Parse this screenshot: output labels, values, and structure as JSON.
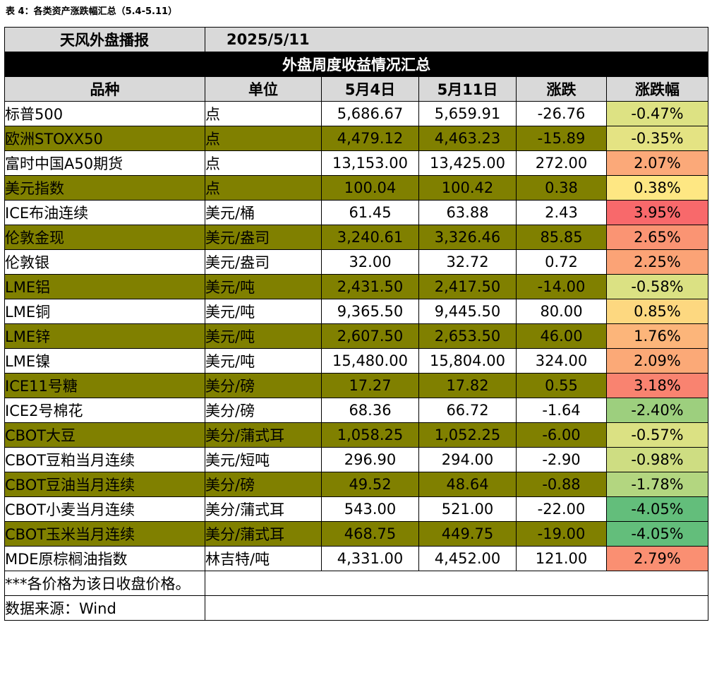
{
  "caption": "表 4：各类资产涨跌幅汇总（5.4-5.11）",
  "header": {
    "brand": "天风外盘播报",
    "date": "2025/5/11",
    "title": "外盘周度收益情况汇总"
  },
  "columns": [
    "品种",
    "单位",
    "5月4日",
    "5月11日",
    "涨跌",
    "涨跌幅"
  ],
  "rows": [
    {
      "name": "标普500",
      "unit": "点",
      "v1": "5,686.67",
      "v2": "5,659.91",
      "chg": "-26.76",
      "pct": "-0.47%",
      "color": "#dde283",
      "olive": false
    },
    {
      "name": "欧洲STOXX50",
      "unit": "点",
      "v1": "4,479.12",
      "v2": "4,463.23",
      "chg": "-15.89",
      "pct": "-0.35%",
      "color": "#e4e383",
      "olive": true
    },
    {
      "name": "富时中国A50期货",
      "unit": "点",
      "v1": "13,153.00",
      "v2": "13,425.00",
      "chg": "272.00",
      "pct": "2.07%",
      "color": "#fba979",
      "olive": false
    },
    {
      "name": "美元指数",
      "unit": "点",
      "v1": "100.04",
      "v2": "100.42",
      "chg": "0.38",
      "pct": "0.38%",
      "color": "#fee783",
      "olive": true
    },
    {
      "name": "ICE布油连续",
      "unit": "美元/桶",
      "v1": "61.45",
      "v2": "63.88",
      "chg": "2.43",
      "pct": "3.95%",
      "color": "#f8696b",
      "olive": false
    },
    {
      "name": "伦敦金现",
      "unit": "美元/盎司",
      "v1": "3,240.61",
      "v2": "3,326.46",
      "chg": "85.85",
      "pct": "2.65%",
      "color": "#fa9473",
      "olive": true
    },
    {
      "name": "伦敦银",
      "unit": "美元/盎司",
      "v1": "32.00",
      "v2": "32.72",
      "chg": "0.72",
      "pct": "2.25%",
      "color": "#fba376",
      "olive": false
    },
    {
      "name": "LME铝",
      "unit": "美元/吨",
      "v1": "2,431.50",
      "v2": "2,417.50",
      "chg": "-14.00",
      "pct": "-0.58%",
      "color": "#dbe183",
      "olive": true
    },
    {
      "name": "LME铜",
      "unit": "美元/吨",
      "v1": "9,365.50",
      "v2": "9,445.50",
      "chg": "80.00",
      "pct": "0.85%",
      "color": "#fdd880",
      "olive": false
    },
    {
      "name": "LME锌",
      "unit": "美元/吨",
      "v1": "2,607.50",
      "v2": "2,653.50",
      "chg": "46.00",
      "pct": "1.76%",
      "color": "#fcb57a",
      "olive": true
    },
    {
      "name": "LME镍",
      "unit": "美元/吨",
      "v1": "15,480.00",
      "v2": "15,804.00",
      "chg": "324.00",
      "pct": "2.09%",
      "color": "#fba977",
      "olive": false
    },
    {
      "name": "ICE11号糖",
      "unit": "美分/磅",
      "v1": "17.27",
      "v2": "17.82",
      "chg": "0.55",
      "pct": "3.18%",
      "color": "#f98370",
      "olive": true
    },
    {
      "name": "ICE2号棉花",
      "unit": "美分/磅",
      "v1": "68.36",
      "v2": "66.72",
      "chg": "-1.64",
      "pct": "-2.40%",
      "color": "#9dcf7e",
      "olive": false
    },
    {
      "name": "CBOT大豆",
      "unit": "美分/蒲式耳",
      "v1": "1,058.25",
      "v2": "1,052.25",
      "chg": "-6.00",
      "pct": "-0.57%",
      "color": "#dbe183",
      "olive": true
    },
    {
      "name": "CBOT豆粕当月连续",
      "unit": "美元/短吨",
      "v1": "296.90",
      "v2": "294.00",
      "chg": "-2.90",
      "pct": "-0.98%",
      "color": "#cedd82",
      "olive": false
    },
    {
      "name": "CBOT豆油当月连续",
      "unit": "美分/磅",
      "v1": "49.52",
      "v2": "48.64",
      "chg": "-0.88",
      "pct": "-1.78%",
      "color": "#b3d680",
      "olive": true
    },
    {
      "name": "CBOT小麦当月连续",
      "unit": "美分/蒲式耳",
      "v1": "543.00",
      "v2": "521.00",
      "chg": "-22.00",
      "pct": "-4.05%",
      "color": "#63be7b",
      "olive": false
    },
    {
      "name": "CBOT玉米当月连续",
      "unit": "美分/蒲式耳",
      "v1": "468.75",
      "v2": "449.75",
      "chg": "-19.00",
      "pct": "-4.05%",
      "color": "#63be7b",
      "olive": true
    },
    {
      "name": "MDE原棕榈油指数",
      "unit": "林吉特/吨",
      "v1": "4,331.00",
      "v2": "4,452.00",
      "chg": "121.00",
      "pct": "2.79%",
      "color": "#fa8f72",
      "olive": false
    }
  ],
  "notes": [
    "***各价格为该日收盘价格。",
    "数据来源：Wind"
  ]
}
